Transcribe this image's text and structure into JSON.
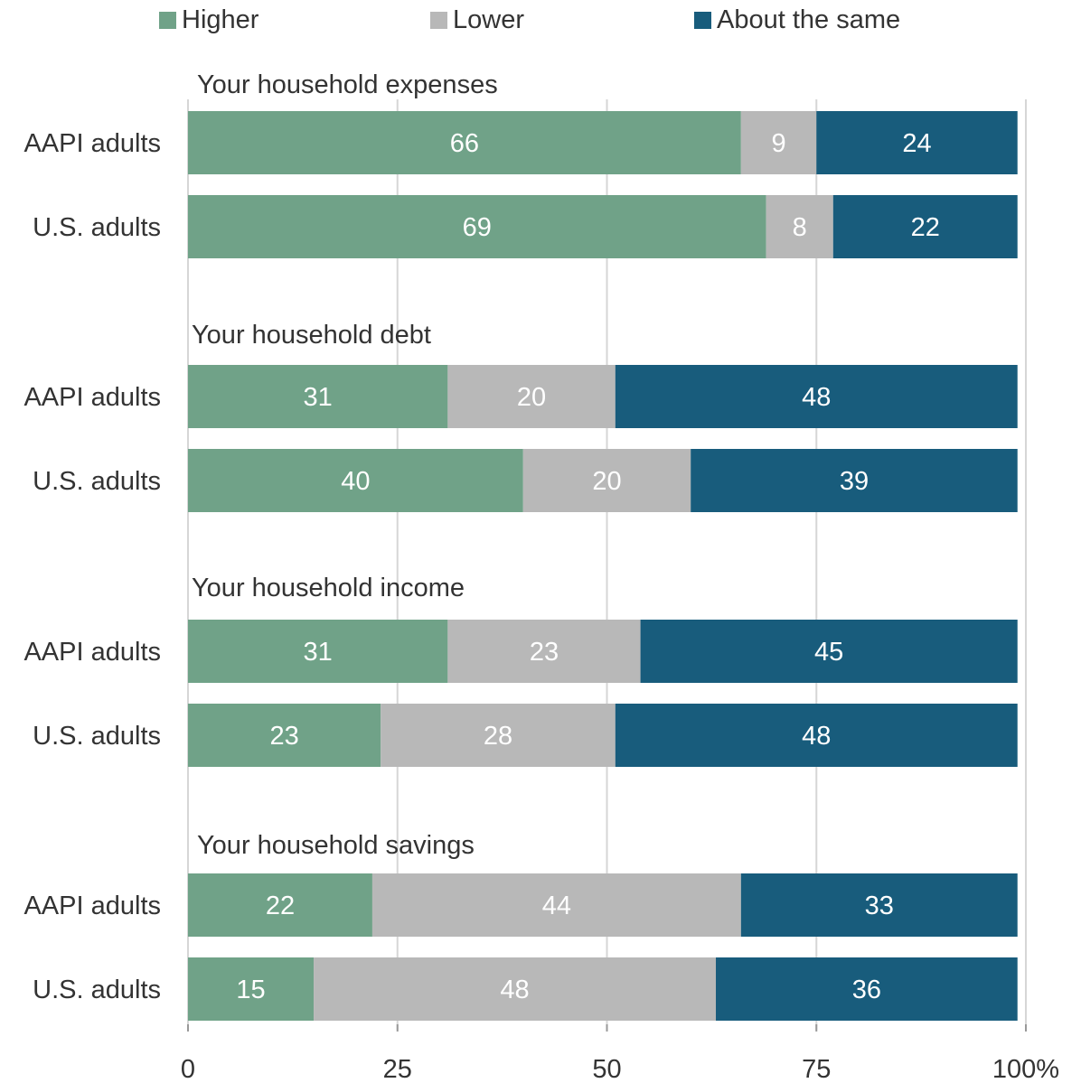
{
  "chart_data": {
    "type": "bar",
    "orientation": "horizontal",
    "stacked": true,
    "legend": {
      "placement": "top",
      "items": [
        {
          "name": "Higher",
          "color": "#70A288"
        },
        {
          "name": "Lower",
          "color": "#B8B8B8"
        },
        {
          "name": "About the same",
          "color": "#185C7C"
        }
      ]
    },
    "groups": [
      {
        "title": "Your household expenses",
        "rows": [
          {
            "label": "AAPI adults",
            "values": [
              66,
              9,
              24
            ]
          },
          {
            "label": "U.S. adults",
            "values": [
              69,
              8,
              22
            ]
          }
        ]
      },
      {
        "title": "Your household debt",
        "rows": [
          {
            "label": "AAPI adults",
            "values": [
              31,
              20,
              48
            ]
          },
          {
            "label": "U.S. adults",
            "values": [
              40,
              20,
              39
            ]
          }
        ]
      },
      {
        "title": "Your household income",
        "rows": [
          {
            "label": "AAPI adults",
            "values": [
              31,
              23,
              45
            ]
          },
          {
            "label": "U.S. adults",
            "values": [
              23,
              28,
              48
            ]
          }
        ]
      },
      {
        "title": "Your household savings",
        "rows": [
          {
            "label": "AAPI adults",
            "values": [
              22,
              44,
              33
            ]
          },
          {
            "label": "U.S. adults",
            "values": [
              15,
              48,
              36
            ]
          }
        ]
      }
    ],
    "x_ticks": [
      "0",
      "25",
      "50",
      "75",
      "100%"
    ],
    "x_tick_values": [
      0,
      25,
      50,
      75,
      100
    ],
    "xlim": [
      0,
      100
    ],
    "grid": true
  }
}
